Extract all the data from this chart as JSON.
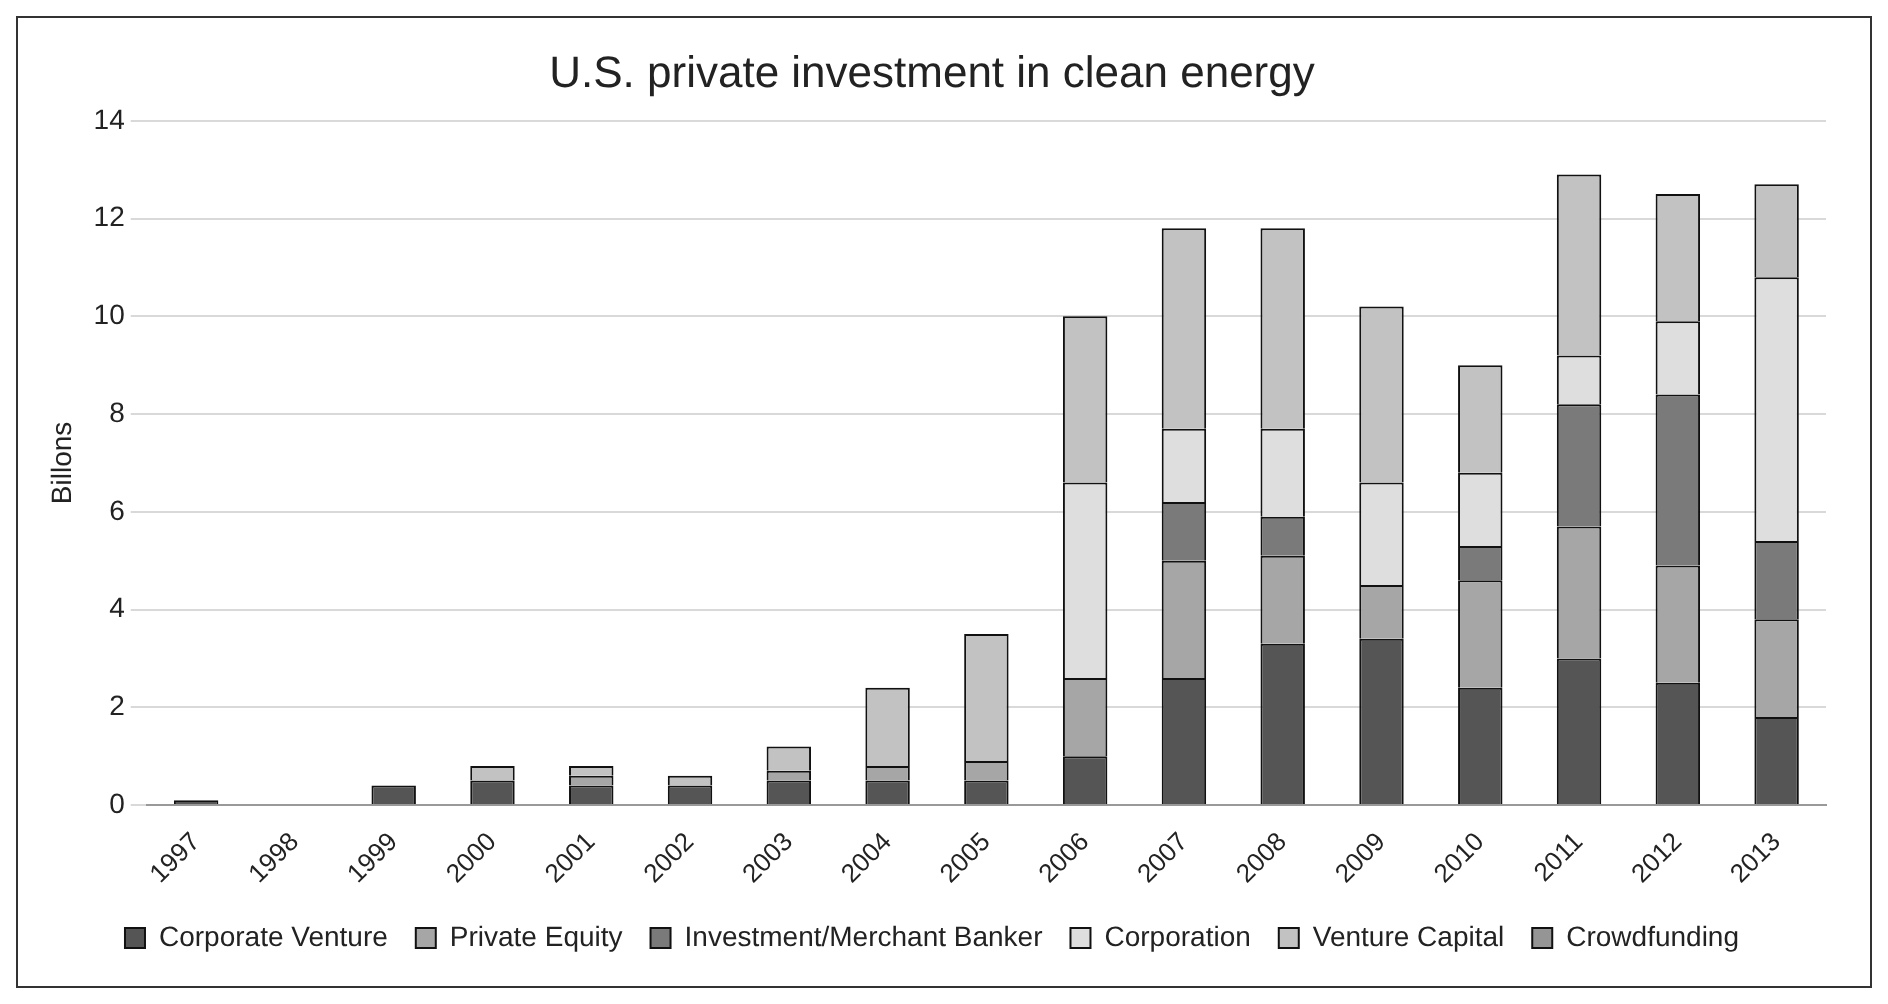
{
  "chart_data": {
    "type": "bar",
    "title": "U.S. private investment in clean energy",
    "ylabel": "Billons",
    "categories": [
      "1997",
      "1998",
      "1999",
      "2000",
      "2001",
      "2002",
      "2003",
      "2004",
      "2005",
      "2006",
      "2007",
      "2008",
      "2009",
      "2010",
      "2011",
      "2012",
      "2013"
    ],
    "stacked": true,
    "ylim": [
      0,
      14
    ],
    "yticks": [
      0,
      2,
      4,
      6,
      8,
      10,
      12,
      14
    ],
    "grid": "y",
    "legend": "bottom",
    "series": [
      {
        "name": "Corporate Venture",
        "color": "#555555",
        "values": [
          0.1,
          0,
          0.4,
          0.5,
          0.4,
          0.4,
          0.5,
          0.5,
          0.5,
          1.0,
          2.6,
          3.3,
          3.4,
          2.4,
          3.0,
          2.5,
          1.8
        ]
      },
      {
        "name": "Private Equity",
        "color": "#a6a6a6",
        "values": [
          0,
          0,
          0,
          0,
          0.2,
          0,
          0.2,
          0.3,
          0.4,
          1.6,
          2.4,
          1.8,
          1.1,
          2.2,
          2.7,
          2.4,
          2.0
        ]
      },
      {
        "name": "Investment/Merchant Banker",
        "color": "#7a7a7a",
        "values": [
          0,
          0,
          0,
          0,
          0,
          0,
          0,
          0,
          0,
          0,
          1.2,
          0.8,
          0,
          0.7,
          2.5,
          3.5,
          1.6
        ]
      },
      {
        "name": "Corporation",
        "color": "#dedede",
        "values": [
          0,
          0,
          0,
          0,
          0,
          0,
          0,
          0,
          0,
          4.0,
          1.5,
          1.8,
          2.1,
          1.5,
          1.0,
          1.5,
          5.4
        ]
      },
      {
        "name": "Venture Capital",
        "color": "#c2c2c2",
        "values": [
          0,
          0,
          0,
          0.3,
          0.2,
          0.2,
          0.5,
          1.6,
          2.6,
          3.4,
          4.1,
          4.1,
          3.6,
          2.2,
          3.7,
          2.6,
          1.9
        ]
      },
      {
        "name": "Crowdfunding",
        "color": "#959595",
        "values": [
          0,
          0,
          0,
          0,
          0,
          0,
          0,
          0,
          0,
          0,
          0,
          0,
          0,
          0,
          0,
          0,
          0
        ]
      }
    ]
  }
}
